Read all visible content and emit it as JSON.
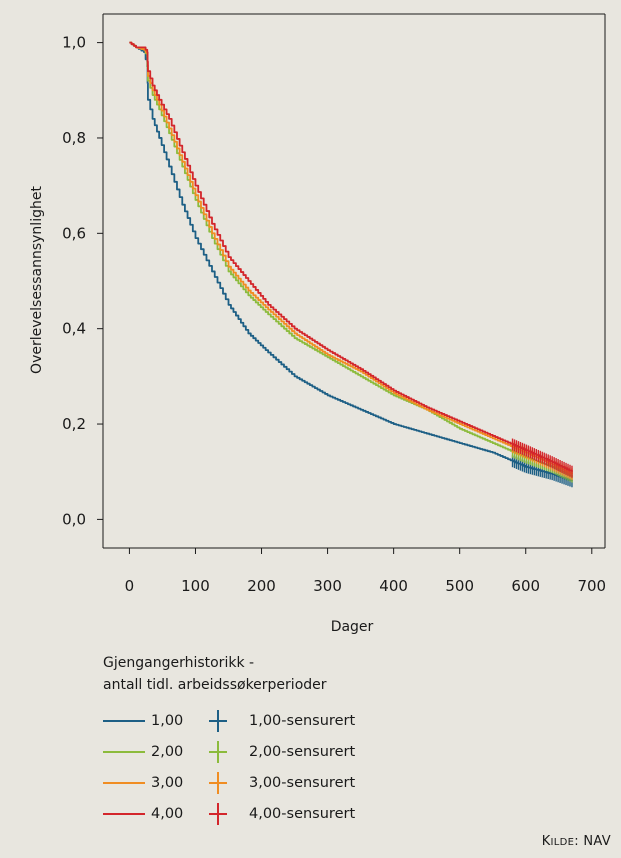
{
  "chart_data": {
    "type": "line",
    "xlabel": "Dager",
    "ylabel": "Overlevelsessannsynlighet",
    "xlim": [
      -40,
      720
    ],
    "ylim": [
      -0.06,
      1.06
    ],
    "x_ticks": [
      0,
      100,
      200,
      300,
      400,
      500,
      600,
      700
    ],
    "x_tick_labels": [
      "0",
      "100",
      "200",
      "300",
      "400",
      "500",
      "600",
      "700"
    ],
    "y_ticks": [
      0.0,
      0.2,
      0.4,
      0.6,
      0.8,
      1.0
    ],
    "y_tick_labels": [
      "0,0",
      "0,2",
      "0,4",
      "0,6",
      "0,8",
      "1,0"
    ],
    "series": [
      {
        "name": "1,00",
        "color": "#1d5f85",
        "x": [
          0,
          10,
          22,
          27,
          28,
          35,
          45,
          60,
          80,
          100,
          125,
          150,
          180,
          210,
          250,
          300,
          350,
          400,
          450,
          500,
          550,
          600,
          640,
          670
        ],
        "y": [
          1.0,
          0.99,
          0.98,
          0.95,
          0.88,
          0.84,
          0.8,
          0.74,
          0.66,
          0.59,
          0.52,
          0.45,
          0.39,
          0.35,
          0.3,
          0.26,
          0.23,
          0.2,
          0.18,
          0.16,
          0.14,
          0.11,
          0.095,
          0.08
        ]
      },
      {
        "name": "2,00",
        "color": "#8cbb3c",
        "x": [
          0,
          10,
          22,
          27,
          28,
          35,
          45,
          60,
          80,
          100,
          125,
          150,
          180,
          210,
          250,
          300,
          350,
          400,
          450,
          500,
          550,
          600,
          640,
          670
        ],
        "y": [
          1.0,
          0.99,
          0.985,
          0.97,
          0.92,
          0.89,
          0.86,
          0.81,
          0.74,
          0.67,
          0.59,
          0.52,
          0.47,
          0.43,
          0.38,
          0.34,
          0.3,
          0.26,
          0.23,
          0.19,
          0.16,
          0.13,
          0.11,
          0.09
        ]
      },
      {
        "name": "3,00",
        "color": "#f08d22",
        "x": [
          0,
          10,
          22,
          27,
          28,
          35,
          45,
          60,
          80,
          100,
          125,
          150,
          180,
          210,
          250,
          300,
          350,
          400,
          450,
          500,
          550,
          600,
          640,
          670
        ],
        "y": [
          1.0,
          0.99,
          0.985,
          0.975,
          0.93,
          0.9,
          0.87,
          0.82,
          0.75,
          0.68,
          0.6,
          0.53,
          0.48,
          0.44,
          0.39,
          0.345,
          0.31,
          0.265,
          0.23,
          0.2,
          0.17,
          0.14,
          0.115,
          0.095
        ]
      },
      {
        "name": "4,00",
        "color": "#d3262b",
        "x": [
          0,
          10,
          22,
          27,
          28,
          35,
          45,
          60,
          80,
          100,
          125,
          150,
          180,
          210,
          250,
          300,
          350,
          400,
          450,
          500,
          550,
          600,
          640,
          670
        ],
        "y": [
          1.0,
          0.99,
          0.99,
          0.98,
          0.94,
          0.91,
          0.88,
          0.84,
          0.77,
          0.7,
          0.62,
          0.55,
          0.5,
          0.45,
          0.4,
          0.355,
          0.315,
          0.27,
          0.235,
          0.205,
          0.175,
          0.145,
          0.12,
          0.1
        ]
      }
    ],
    "censored_band": [
      580,
      670
    ],
    "legend_placement": "bottom"
  },
  "legend": {
    "title_line1": "Gjengangerhistorikk -",
    "title_line2": "antall tidl. arbeidssøkerperioder",
    "items": [
      {
        "label": "1,00",
        "censored_label": "1,00-sensurert",
        "color": "#1d5f85"
      },
      {
        "label": "2,00",
        "censored_label": "2,00-sensurert",
        "color": "#8cbb3c"
      },
      {
        "label": "3,00",
        "censored_label": "3,00-sensurert",
        "color": "#f08d22"
      },
      {
        "label": "4,00",
        "censored_label": "4,00-sensurert",
        "color": "#d3262b"
      }
    ]
  },
  "source": {
    "prefix_big": "K",
    "prefix_small": "ILDE",
    "suffix": ": NAV"
  }
}
